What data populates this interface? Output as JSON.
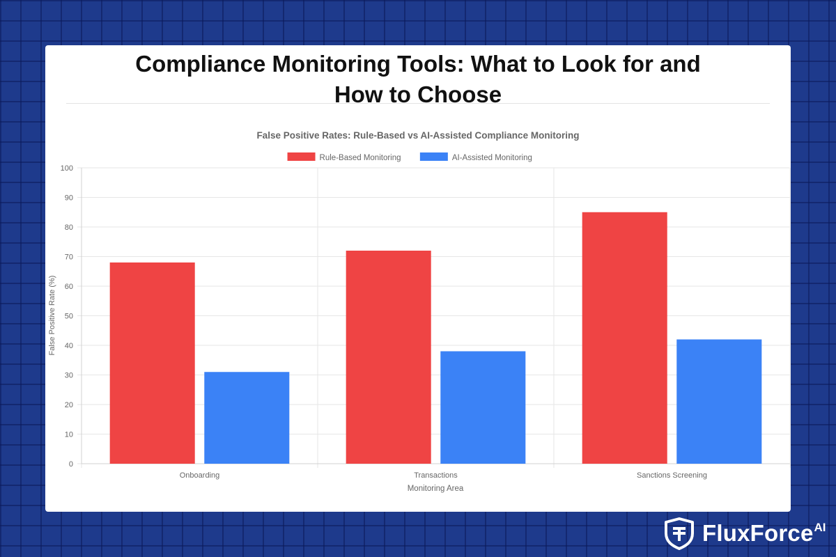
{
  "page": {
    "title_line1": "Compliance Monitoring Tools: What to Look for and",
    "title_line2": "How to Choose",
    "background_color": "#1e3a8c"
  },
  "brand": {
    "name": "FluxForce",
    "superscript": "AI",
    "icon": "shield-logo-icon"
  },
  "chart_data": {
    "type": "bar",
    "title": "False Positive Rates: Rule-Based vs AI-Assisted Compliance Monitoring",
    "xlabel": "Monitoring Area",
    "ylabel": "False Positive Rate (%)",
    "ylim": [
      0,
      100
    ],
    "yticks": [
      0,
      10,
      20,
      30,
      40,
      50,
      60,
      70,
      80,
      90,
      100
    ],
    "categories": [
      "Onboarding",
      "Transactions",
      "Sanctions Screening"
    ],
    "series": [
      {
        "name": "Rule-Based Monitoring",
        "color": "#ef4444",
        "values": [
          68,
          72,
          85
        ]
      },
      {
        "name": "AI-Assisted Monitoring",
        "color": "#3b82f6",
        "values": [
          31,
          38,
          42
        ]
      }
    ],
    "grid": true,
    "legend_position": "top-center"
  }
}
